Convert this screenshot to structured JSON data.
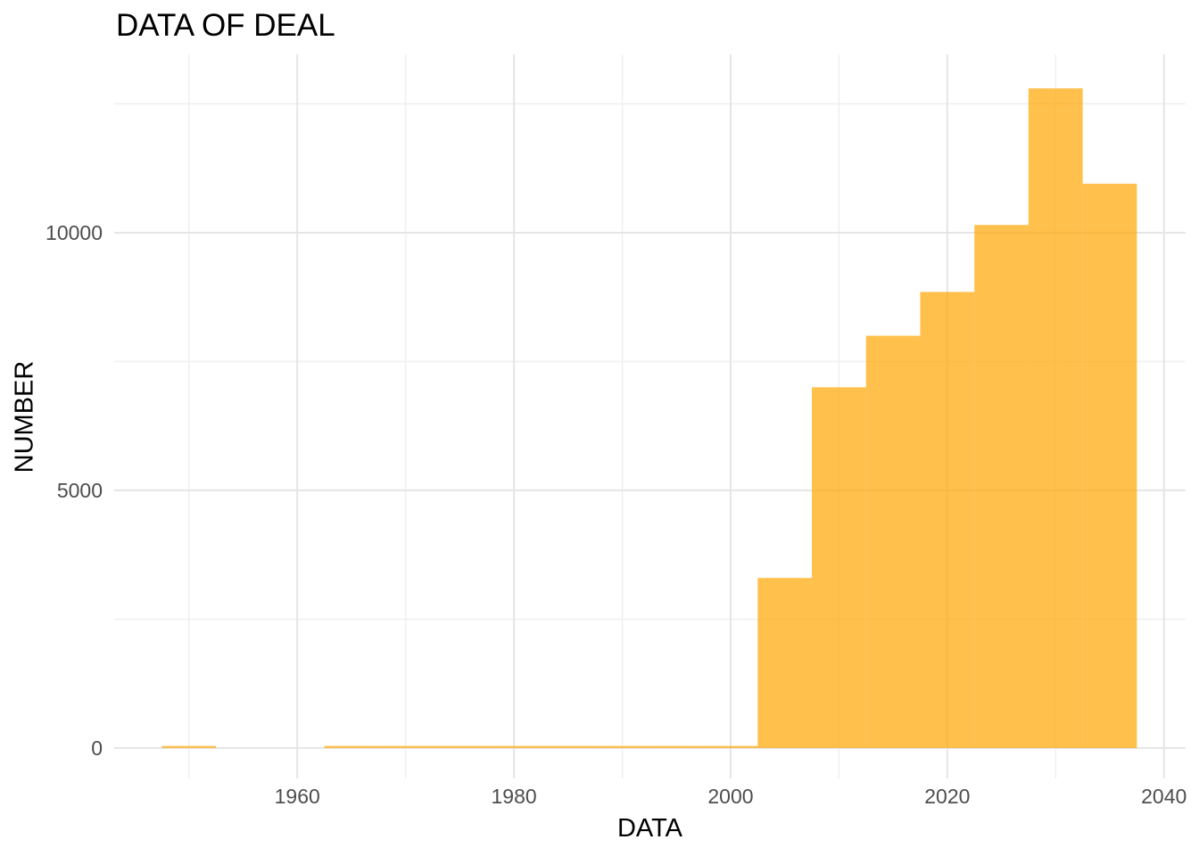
{
  "chart_data": {
    "type": "bar",
    "subtype": "histogram",
    "title": "DATA OF DEAL",
    "xlabel": "DATA",
    "ylabel": "NUMBER",
    "legend": "none",
    "grid": "on",
    "bar_color": "rgba(255,165,0,0.7)",
    "bar_color_over_white": "#FFC04D",
    "bin_width_years": 5,
    "bins": [
      {
        "center": 1950,
        "count": 40
      },
      {
        "center": 1955,
        "count": 0
      },
      {
        "center": 1960,
        "count": 0
      },
      {
        "center": 1965,
        "count": 40
      },
      {
        "center": 1970,
        "count": 40
      },
      {
        "center": 1975,
        "count": 40
      },
      {
        "center": 1980,
        "count": 40
      },
      {
        "center": 1985,
        "count": 40
      },
      {
        "center": 1990,
        "count": 40
      },
      {
        "center": 1995,
        "count": 40
      },
      {
        "center": 2000,
        "count": 40
      },
      {
        "center": 2005,
        "count": 3300
      },
      {
        "center": 2010,
        "count": 7000
      },
      {
        "center": 2015,
        "count": 8000
      },
      {
        "center": 2020,
        "count": 8850
      },
      {
        "center": 2025,
        "count": 10150
      },
      {
        "center": 2030,
        "count": 12800
      },
      {
        "center": 2035,
        "count": 10950
      }
    ],
    "x_major_ticks": [
      1960,
      1980,
      2000,
      2020,
      2040
    ],
    "x_minor_gridlines": [
      1950,
      1970,
      1990,
      2010,
      2030
    ],
    "y_major_ticks": [
      0,
      5000,
      10000
    ],
    "y_minor_gridlines": [
      2500,
      7500,
      12500
    ],
    "xlim": [
      1943.1,
      2042.0
    ],
    "ylim": [
      -590,
      13460
    ],
    "colors": {
      "plot_title": "#000000",
      "axis_title": "#000000",
      "tick_label": "#4D4D4D",
      "grid_major": "#E5E5E5",
      "grid_minor": "#F0F0F0",
      "panel_background": "#FFFFFF"
    }
  }
}
